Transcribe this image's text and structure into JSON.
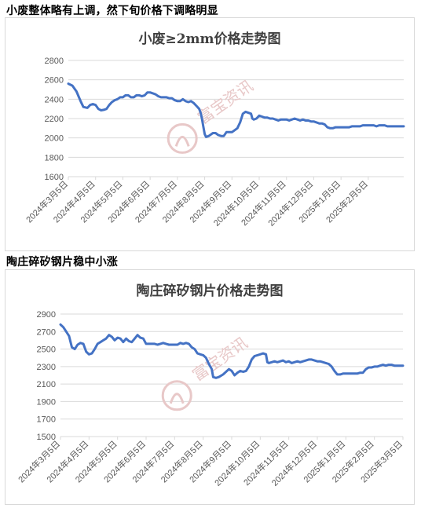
{
  "headings": {
    "first": "小废整体略有上调，然下旬价格下调略明显",
    "second": "陶庄碎矽钢片稳中小涨"
  },
  "watermark": {
    "text": "富宝资讯"
  },
  "colors": {
    "line": "#4472c4",
    "grid": "#d9d9d9",
    "axis_text": "#595959",
    "watermark": "#e8c8c8"
  },
  "chart_data": [
    {
      "type": "line",
      "title": "小废≥2mm价格走势图",
      "xlabel": "",
      "ylabel": "",
      "ylim": [
        1600,
        2800
      ],
      "yticks": [
        1600,
        1800,
        2000,
        2200,
        2400,
        2600,
        2800
      ],
      "xticks": [
        "2024年3月5日",
        "2024年4月5日",
        "2024年5月5日",
        "2024年6月5日",
        "2024年7月5日",
        "2024年8月5日",
        "2024年9月5日",
        "2024年10月5日",
        "2024年11月5日",
        "2024年12月5日",
        "2025年1月5日",
        "2025年2月5日"
      ],
      "xdomain": [
        0,
        12.3
      ],
      "grid": true,
      "series": [
        {
          "values": [
            [
              0,
              2560
            ],
            [
              0.15,
              2540
            ],
            [
              0.3,
              2480
            ],
            [
              0.45,
              2380
            ],
            [
              0.55,
              2320
            ],
            [
              0.7,
              2310
            ],
            [
              0.8,
              2340
            ],
            [
              0.9,
              2350
            ],
            [
              1.0,
              2340
            ],
            [
              1.1,
              2300
            ],
            [
              1.2,
              2285
            ],
            [
              1.3,
              2290
            ],
            [
              1.4,
              2300
            ],
            [
              1.5,
              2340
            ],
            [
              1.6,
              2370
            ],
            [
              1.7,
              2390
            ],
            [
              1.8,
              2400
            ],
            [
              1.9,
              2420
            ],
            [
              2.0,
              2420
            ],
            [
              2.1,
              2440
            ],
            [
              2.2,
              2440
            ],
            [
              2.3,
              2420
            ],
            [
              2.4,
              2420
            ],
            [
              2.5,
              2440
            ],
            [
              2.6,
              2440
            ],
            [
              2.7,
              2430
            ],
            [
              2.8,
              2440
            ],
            [
              2.9,
              2470
            ],
            [
              3.0,
              2470
            ],
            [
              3.1,
              2460
            ],
            [
              3.2,
              2450
            ],
            [
              3.3,
              2430
            ],
            [
              3.4,
              2420
            ],
            [
              3.5,
              2420
            ],
            [
              3.6,
              2420
            ],
            [
              3.7,
              2410
            ],
            [
              3.8,
              2410
            ],
            [
              3.9,
              2390
            ],
            [
              4.0,
              2380
            ],
            [
              4.1,
              2380
            ],
            [
              4.2,
              2400
            ],
            [
              4.3,
              2380
            ],
            [
              4.4,
              2370
            ],
            [
              4.5,
              2380
            ],
            [
              4.6,
              2360
            ],
            [
              4.7,
              2330
            ],
            [
              4.8,
              2300
            ],
            [
              4.85,
              2260
            ],
            [
              4.9,
              2200
            ],
            [
              4.95,
              2120
            ],
            [
              5.0,
              2040
            ],
            [
              5.05,
              2010
            ],
            [
              5.15,
              2020
            ],
            [
              5.3,
              2050
            ],
            [
              5.4,
              2050
            ],
            [
              5.5,
              2030
            ],
            [
              5.6,
              2020
            ],
            [
              5.7,
              2020
            ],
            [
              5.8,
              2060
            ],
            [
              5.9,
              2060
            ],
            [
              6.0,
              2060
            ],
            [
              6.1,
              2080
            ],
            [
              6.2,
              2100
            ],
            [
              6.3,
              2160
            ],
            [
              6.4,
              2250
            ],
            [
              6.5,
              2270
            ],
            [
              6.6,
              2260
            ],
            [
              6.7,
              2250
            ],
            [
              6.75,
              2200
            ],
            [
              6.8,
              2190
            ],
            [
              6.9,
              2200
            ],
            [
              7.0,
              2230
            ],
            [
              7.1,
              2220
            ],
            [
              7.2,
              2210
            ],
            [
              7.3,
              2210
            ],
            [
              7.4,
              2200
            ],
            [
              7.5,
              2200
            ],
            [
              7.6,
              2190
            ],
            [
              7.7,
              2180
            ],
            [
              7.8,
              2190
            ],
            [
              7.9,
              2190
            ],
            [
              8.0,
              2190
            ],
            [
              8.1,
              2180
            ],
            [
              8.2,
              2190
            ],
            [
              8.3,
              2200
            ],
            [
              8.4,
              2190
            ],
            [
              8.5,
              2180
            ],
            [
              8.6,
              2190
            ],
            [
              8.7,
              2180
            ],
            [
              8.8,
              2180
            ],
            [
              8.9,
              2170
            ],
            [
              9.0,
              2170
            ],
            [
              9.1,
              2160
            ],
            [
              9.2,
              2150
            ],
            [
              9.3,
              2150
            ],
            [
              9.4,
              2140
            ],
            [
              9.5,
              2110
            ],
            [
              9.6,
              2100
            ],
            [
              9.7,
              2100
            ],
            [
              9.8,
              2110
            ],
            [
              9.9,
              2110
            ],
            [
              10.0,
              2110
            ],
            [
              10.1,
              2110
            ],
            [
              10.2,
              2110
            ],
            [
              10.3,
              2110
            ],
            [
              10.4,
              2120
            ],
            [
              10.5,
              2120
            ],
            [
              10.6,
              2120
            ],
            [
              10.7,
              2120
            ],
            [
              10.8,
              2130
            ],
            [
              10.9,
              2130
            ],
            [
              11.0,
              2130
            ],
            [
              11.1,
              2130
            ],
            [
              11.2,
              2130
            ],
            [
              11.3,
              2120
            ],
            [
              11.4,
              2130
            ],
            [
              11.5,
              2130
            ],
            [
              11.6,
              2130
            ],
            [
              11.7,
              2120
            ],
            [
              11.8,
              2120
            ],
            [
              11.9,
              2120
            ],
            [
              12.0,
              2120
            ],
            [
              12.1,
              2120
            ],
            [
              12.2,
              2120
            ],
            [
              12.3,
              2120
            ]
          ]
        }
      ]
    },
    {
      "type": "line",
      "title": "陶庄碎矽钢片价格走势图",
      "xlabel": "",
      "ylabel": "",
      "ylim": [
        1500,
        2900
      ],
      "yticks": [
        1500,
        1700,
        1900,
        2100,
        2300,
        2500,
        2700,
        2900
      ],
      "xticks": [
        "2024年3月5日",
        "2024年4月5日",
        "2024年5月5日",
        "2024年6月5日",
        "2024年7月5日",
        "2024年8月5日",
        "2024年9月5日",
        "2024年10月5日",
        "2024年11月5日",
        "2024年12月5日",
        "2025年1月5日",
        "2025年2月5日",
        "2025年3月5日"
      ],
      "xdomain": [
        0,
        12
      ],
      "grid": true,
      "series": [
        {
          "values": [
            [
              0,
              2780
            ],
            [
              0.1,
              2750
            ],
            [
              0.2,
              2700
            ],
            [
              0.3,
              2650
            ],
            [
              0.4,
              2520
            ],
            [
              0.5,
              2500
            ],
            [
              0.6,
              2550
            ],
            [
              0.7,
              2570
            ],
            [
              0.8,
              2560
            ],
            [
              0.9,
              2470
            ],
            [
              1.0,
              2440
            ],
            [
              1.1,
              2450
            ],
            [
              1.2,
              2500
            ],
            [
              1.3,
              2560
            ],
            [
              1.4,
              2580
            ],
            [
              1.5,
              2600
            ],
            [
              1.6,
              2620
            ],
            [
              1.7,
              2660
            ],
            [
              1.8,
              2640
            ],
            [
              1.9,
              2600
            ],
            [
              2.0,
              2630
            ],
            [
              2.1,
              2620
            ],
            [
              2.2,
              2580
            ],
            [
              2.3,
              2620
            ],
            [
              2.4,
              2590
            ],
            [
              2.5,
              2580
            ],
            [
              2.6,
              2620
            ],
            [
              2.7,
              2660
            ],
            [
              2.8,
              2630
            ],
            [
              2.9,
              2620
            ],
            [
              3.0,
              2560
            ],
            [
              3.1,
              2560
            ],
            [
              3.2,
              2560
            ],
            [
              3.3,
              2560
            ],
            [
              3.4,
              2550
            ],
            [
              3.5,
              2560
            ],
            [
              3.6,
              2570
            ],
            [
              3.7,
              2560
            ],
            [
              3.8,
              2550
            ],
            [
              3.9,
              2550
            ],
            [
              4.0,
              2550
            ],
            [
              4.1,
              2550
            ],
            [
              4.2,
              2570
            ],
            [
              4.3,
              2560
            ],
            [
              4.4,
              2570
            ],
            [
              4.5,
              2560
            ],
            [
              4.6,
              2520
            ],
            [
              4.7,
              2500
            ],
            [
              4.8,
              2450
            ],
            [
              4.9,
              2440
            ],
            [
              5.0,
              2430
            ],
            [
              5.1,
              2400
            ],
            [
              5.2,
              2330
            ],
            [
              5.3,
              2270
            ],
            [
              5.35,
              2180
            ],
            [
              5.45,
              2170
            ],
            [
              5.55,
              2180
            ],
            [
              5.7,
              2210
            ],
            [
              5.9,
              2270
            ],
            [
              6.0,
              2250
            ],
            [
              6.1,
              2200
            ],
            [
              6.2,
              2230
            ],
            [
              6.3,
              2250
            ],
            [
              6.4,
              2240
            ],
            [
              6.5,
              2250
            ],
            [
              6.6,
              2300
            ],
            [
              6.7,
              2380
            ],
            [
              6.8,
              2420
            ],
            [
              6.9,
              2430
            ],
            [
              7.0,
              2440
            ],
            [
              7.1,
              2450
            ],
            [
              7.2,
              2440
            ],
            [
              7.25,
              2350
            ],
            [
              7.3,
              2340
            ],
            [
              7.4,
              2350
            ],
            [
              7.5,
              2360
            ],
            [
              7.6,
              2350
            ],
            [
              7.7,
              2360
            ],
            [
              7.8,
              2370
            ],
            [
              7.9,
              2350
            ],
            [
              8.0,
              2360
            ],
            [
              8.1,
              2340
            ],
            [
              8.2,
              2350
            ],
            [
              8.3,
              2360
            ],
            [
              8.4,
              2350
            ],
            [
              8.5,
              2360
            ],
            [
              8.6,
              2370
            ],
            [
              8.7,
              2380
            ],
            [
              8.8,
              2380
            ],
            [
              8.9,
              2370
            ],
            [
              9.0,
              2360
            ],
            [
              9.1,
              2360
            ],
            [
              9.2,
              2350
            ],
            [
              9.3,
              2340
            ],
            [
              9.4,
              2330
            ],
            [
              9.5,
              2300
            ],
            [
              9.6,
              2250
            ],
            [
              9.7,
              2210
            ],
            [
              9.8,
              2210
            ],
            [
              9.9,
              2220
            ],
            [
              10.0,
              2220
            ],
            [
              10.1,
              2220
            ],
            [
              10.2,
              2220
            ],
            [
              10.3,
              2220
            ],
            [
              10.4,
              2220
            ],
            [
              10.5,
              2230
            ],
            [
              10.6,
              2230
            ],
            [
              10.7,
              2270
            ],
            [
              10.8,
              2290
            ],
            [
              10.9,
              2290
            ],
            [
              11.0,
              2300
            ],
            [
              11.1,
              2300
            ],
            [
              11.2,
              2310
            ],
            [
              11.3,
              2320
            ],
            [
              11.4,
              2310
            ],
            [
              11.5,
              2320
            ],
            [
              11.6,
              2320
            ],
            [
              11.7,
              2310
            ],
            [
              11.8,
              2310
            ],
            [
              11.9,
              2310
            ],
            [
              12.0,
              2310
            ]
          ]
        }
      ]
    }
  ]
}
